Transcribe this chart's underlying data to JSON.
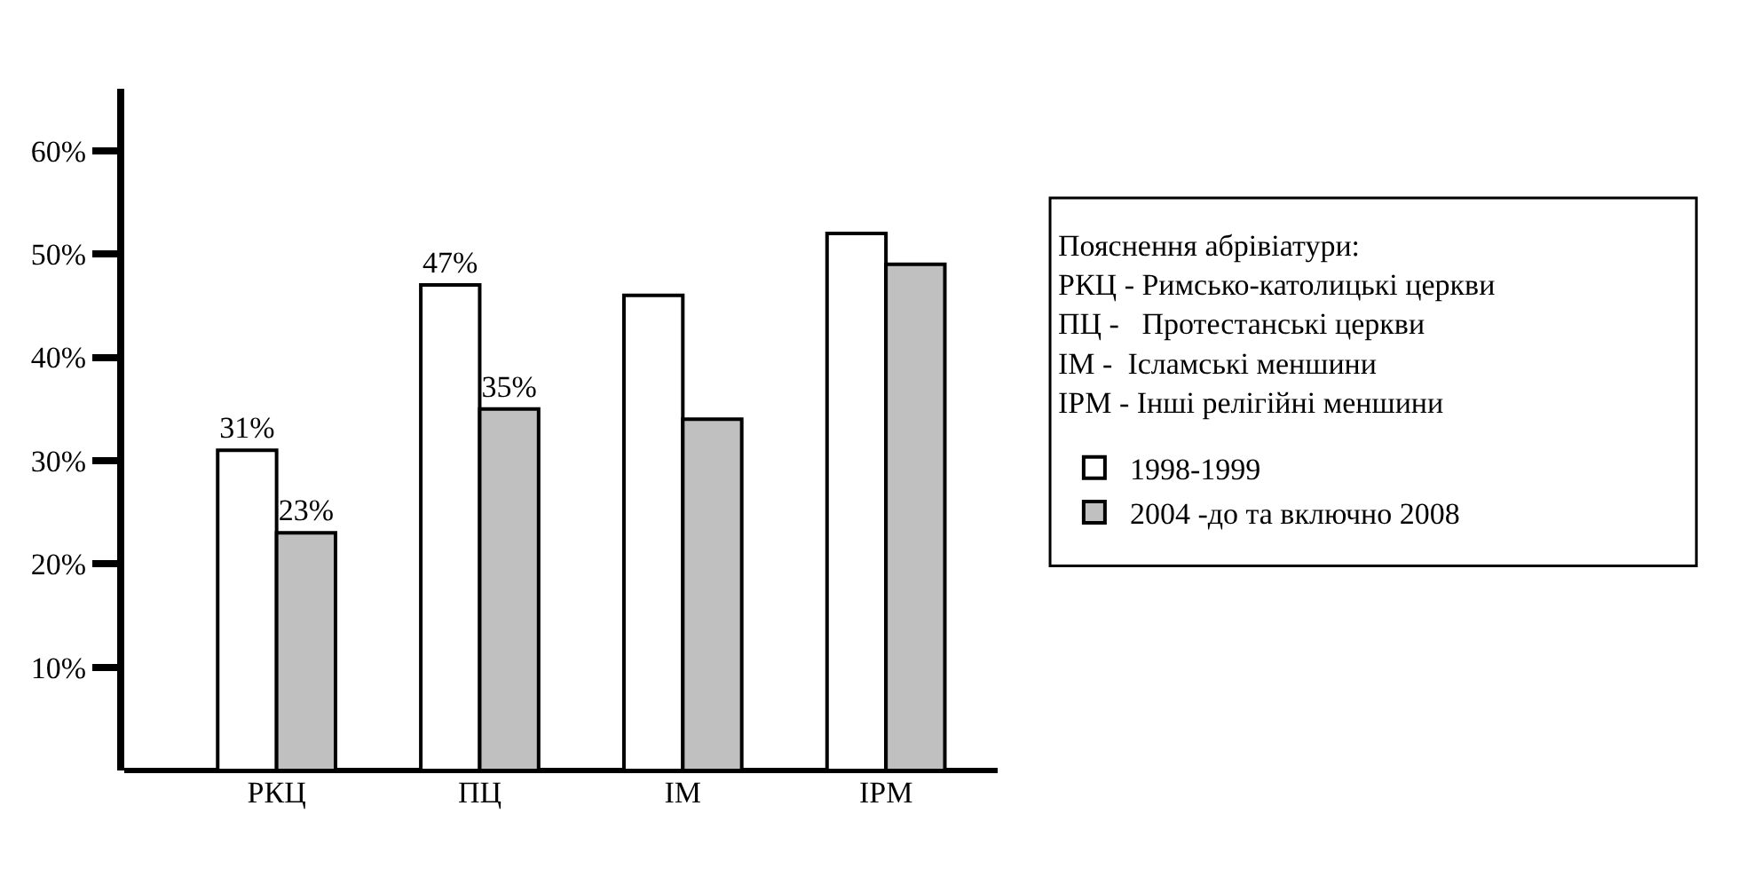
{
  "chart_data": {
    "type": "bar",
    "categories": [
      "РКЦ",
      "ПЦ",
      "ІМ",
      "ІРМ"
    ],
    "series": [
      {
        "name": "1998-1999",
        "color": "#ffffff",
        "values": [
          31,
          47,
          46,
          52
        ],
        "value_labels": [
          "31%",
          "47%",
          null,
          null
        ]
      },
      {
        "name": "2004 -до та включно 2008",
        "color": "#c0c0c0",
        "values": [
          23,
          35,
          34,
          49
        ],
        "value_labels": [
          "23%",
          "35%",
          null,
          null
        ]
      }
    ],
    "ylim": [
      0,
      66
    ],
    "yticks": [
      {
        "value": 10,
        "label": "10%"
      },
      {
        "value": 20,
        "label": "20%"
      },
      {
        "value": 30,
        "label": "30%"
      },
      {
        "value": 40,
        "label": "40%"
      },
      {
        "value": 50,
        "label": "50%"
      },
      {
        "value": 60,
        "label": "60%"
      }
    ],
    "grid": false,
    "legend": "right",
    "annotations": [
      "Пояснення абрівіатури:",
      "РКЦ - Римсько-католицькі церкви",
      "ПЦ -   Протестанські церкви",
      "ІМ -  Ісламські меншини",
      "ІРМ - Інші релігійні меншини"
    ]
  }
}
